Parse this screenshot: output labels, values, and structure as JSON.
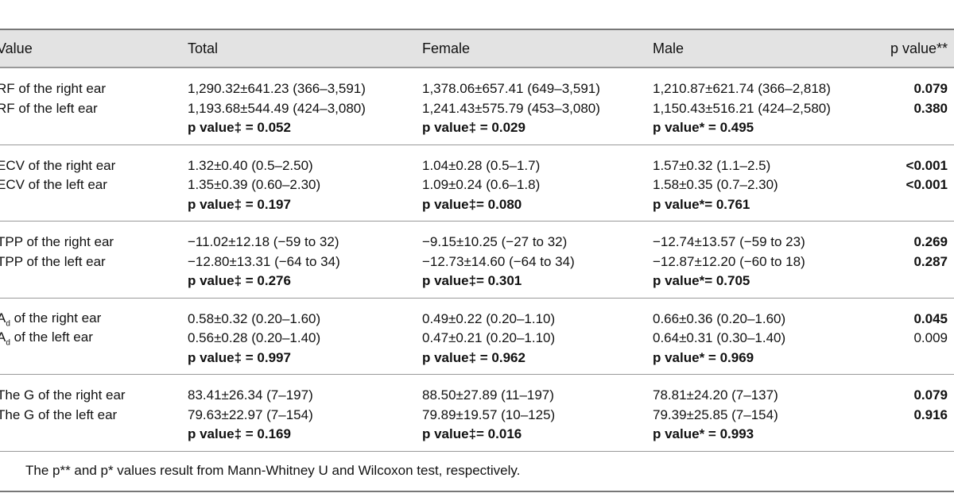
{
  "header": {
    "variable": "Value",
    "total": "Total",
    "female": "Female",
    "male": "Male",
    "p": "p value**"
  },
  "groups": [
    {
      "rows": [
        {
          "label": "RF of the right ear",
          "total": "1,290.32±641.23 (366–3,591)",
          "female": "1,378.06±657.41 (649–3,591)",
          "male": "1,210.87±621.74 (366–2,818)",
          "p": "0.079"
        },
        {
          "label": "RF of the left ear",
          "total": "1,193.68±544.49 (424–3,080)",
          "female": "1,241.43±575.79 (453–3,080)",
          "male": "1,150.43±516.21 (424–2,580)",
          "p": "0.380"
        }
      ],
      "pvals": {
        "total": "p value‡ = 0.052",
        "female": "p value‡ = 0.029",
        "male": "p value* = 0.495"
      }
    },
    {
      "rows": [
        {
          "label": "ECV of the right ear",
          "total": "1.32±0.40 (0.5–2.50)",
          "female": "1.04±0.28 (0.5–1.7)",
          "male": "1.57±0.32 (1.1–2.5)",
          "p": "<0.001"
        },
        {
          "label": "ECV of the left ear",
          "total": "1.35±0.39 (0.60–2.30)",
          "female": "1.09±0.24 (0.6–1.8)",
          "male": "1.58±0.35 (0.7–2.30)",
          "p": "<0.001"
        }
      ],
      "pvals": {
        "total": "p value‡ = 0.197",
        "female": "p value‡= 0.080",
        "male": "p value*= 0.761"
      }
    },
    {
      "rows": [
        {
          "label": "TPP of the right ear",
          "total": "−11.02±12.18 (−59 to 32)",
          "female": "−9.15±10.25 (−27 to 32)",
          "male": "−12.74±13.57 (−59 to 23)",
          "p": "0.269"
        },
        {
          "label": "TPP of the left ear",
          "total": "−12.80±13.31 (−64 to 34)",
          "female": "−12.73±14.60 (−64 to 34)",
          "male": "−12.87±12.20 (−60 to 18)",
          "p": "0.287"
        }
      ],
      "pvals": {
        "total": "p value‡ = 0.276",
        "female": "p value‡= 0.301",
        "male": "p value*= 0.705"
      }
    },
    {
      "rows": [
        {
          "label": "A",
          "sub": "d",
          "label_rest": " of the right ear",
          "total": "0.58±0.32 (0.20–1.60)",
          "female": "0.49±0.22 (0.20–1.10)",
          "male": "0.66±0.36 (0.20–1.60)",
          "p": "0.045"
        },
        {
          "label": "A",
          "sub": "d",
          "label_rest": " of the left ear",
          "total": "0.56±0.28 (0.20–1.40)",
          "female": "0.47±0.21 (0.20–1.10)",
          "male": "0.64±0.31 (0.30–1.40)",
          "p": "0.009"
        }
      ],
      "pvals": {
        "total": "p value‡ = 0.997",
        "female": "p value‡ = 0.962",
        "male": "p value* = 0.969"
      }
    },
    {
      "rows": [
        {
          "label": "The G of the right ear",
          "total": "83.41±26.34 (7–197)",
          "female": "88.50±27.89 (11–197)",
          "male": "78.81±24.20 (7–137)",
          "p": "0.079"
        },
        {
          "label": "The G of the left ear",
          "total": "79.63±22.97 (7–154)",
          "female": "79.89±19.57 (10–125)",
          "male": "79.39±25.85 (7–154)",
          "p": "0.916"
        }
      ],
      "pvals": {
        "total": "p value‡ = 0.169",
        "female": "p value‡= 0.016",
        "male": "p value* = 0.993"
      }
    }
  ],
  "footnote": "The p** and p* values result from Mann-Whitney U and Wilcoxon test, respectively."
}
